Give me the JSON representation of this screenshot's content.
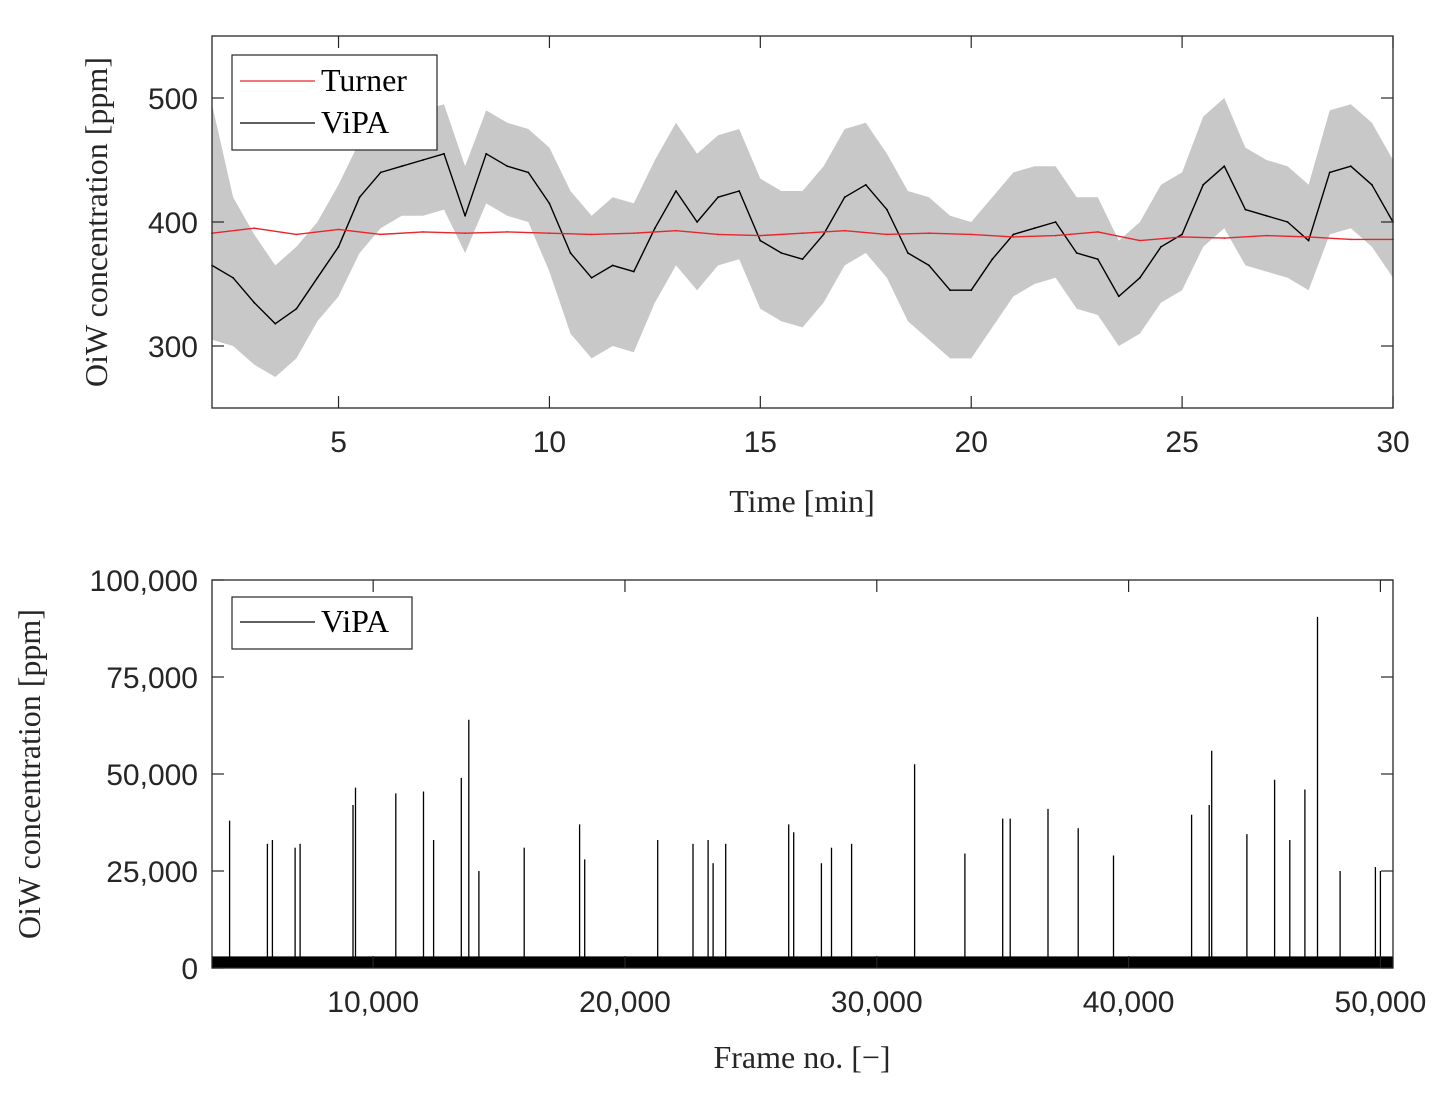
{
  "chart_data": [
    {
      "type": "line",
      "xlabel": "Time [min]",
      "ylabel": "OiW concentration [ppm]",
      "xlim": [
        2,
        30
      ],
      "ylim": [
        250,
        550
      ],
      "x_ticks": [
        5,
        10,
        15,
        20,
        25,
        30
      ],
      "x_tick_labels": [
        "5",
        "10",
        "15",
        "20",
        "25",
        "30"
      ],
      "y_ticks": [
        300,
        400,
        500
      ],
      "y_tick_labels": [
        "300",
        "400",
        "500"
      ],
      "legend": {
        "position": "top-left",
        "entries": [
          "Turner",
          "ViPA"
        ]
      },
      "series": [
        {
          "name": "Turner",
          "color": "#e8262c",
          "x": [
            2,
            3,
            4,
            5,
            6,
            7,
            8,
            9,
            10,
            11,
            12,
            13,
            14,
            15,
            16,
            17,
            18,
            19,
            20,
            21,
            22,
            23,
            24,
            25,
            26,
            27,
            28,
            29,
            30
          ],
          "values": [
            391,
            395,
            390,
            394,
            390,
            392,
            391,
            392,
            391,
            390,
            391,
            393,
            390,
            389,
            391,
            393,
            390,
            391,
            390,
            388,
            389,
            392,
            385,
            388,
            387,
            389,
            388,
            386,
            386
          ]
        },
        {
          "name": "ViPA",
          "color": "#000000",
          "band_color": "#c8c8c8",
          "x": [
            2,
            2.5,
            3,
            3.5,
            4,
            4.5,
            5,
            5.5,
            6,
            6.5,
            7,
            7.5,
            8,
            8.5,
            9,
            9.5,
            10,
            10.5,
            11,
            11.5,
            12,
            12.5,
            13,
            13.5,
            14,
            14.5,
            15,
            15.5,
            16,
            16.5,
            17,
            17.5,
            18,
            18.5,
            19,
            19.5,
            20,
            20.5,
            21,
            21.5,
            22,
            22.5,
            23,
            23.5,
            24,
            24.5,
            25,
            25.5,
            26,
            26.5,
            27,
            27.5,
            28,
            28.5,
            29,
            29.5,
            30
          ],
          "values": [
            365,
            355,
            335,
            318,
            330,
            355,
            380,
            420,
            440,
            445,
            450,
            455,
            405,
            455,
            445,
            440,
            415,
            375,
            355,
            365,
            360,
            395,
            425,
            400,
            420,
            425,
            385,
            375,
            370,
            390,
            420,
            430,
            410,
            375,
            365,
            345,
            345,
            370,
            390,
            395,
            400,
            375,
            370,
            340,
            355,
            380,
            390,
            430,
            445,
            410,
            405,
            400,
            385,
            440,
            445,
            430,
            400
          ],
          "lower": [
            305,
            300,
            285,
            275,
            290,
            320,
            340,
            375,
            395,
            405,
            405,
            410,
            375,
            415,
            405,
            400,
            360,
            310,
            290,
            300,
            295,
            335,
            365,
            345,
            365,
            370,
            330,
            320,
            315,
            335,
            365,
            375,
            355,
            320,
            305,
            290,
            290,
            315,
            340,
            350,
            355,
            330,
            325,
            300,
            310,
            335,
            345,
            380,
            395,
            365,
            360,
            355,
            345,
            390,
            395,
            380,
            355
          ],
          "upper": [
            495,
            420,
            390,
            365,
            380,
            400,
            430,
            465,
            485,
            490,
            490,
            495,
            445,
            490,
            480,
            475,
            460,
            425,
            405,
            420,
            415,
            450,
            480,
            455,
            470,
            475,
            435,
            425,
            425,
            445,
            475,
            480,
            455,
            425,
            420,
            405,
            400,
            420,
            440,
            445,
            445,
            420,
            420,
            385,
            400,
            430,
            440,
            485,
            500,
            460,
            450,
            445,
            430,
            490,
            495,
            480,
            450
          ]
        }
      ]
    },
    {
      "type": "line",
      "xlabel": "Frame no. [−]",
      "ylabel": "OiW concentration [ppm]",
      "xlim": [
        3600,
        50500
      ],
      "ylim": [
        0,
        100000
      ],
      "x_ticks": [
        10000,
        20000,
        30000,
        40000,
        50000
      ],
      "x_tick_labels": [
        "10,000",
        "20,000",
        "30,000",
        "40,000",
        "50,000"
      ],
      "y_ticks": [
        0,
        25000,
        50000,
        75000,
        100000
      ],
      "y_tick_labels": [
        "0",
        "25,000",
        "50,000",
        "75,000",
        "100,000"
      ],
      "legend": {
        "position": "top-left",
        "entries": [
          "ViPA"
        ]
      },
      "series": [
        {
          "name": "ViPA",
          "color": "#000000",
          "baseline": 3000,
          "x": [
            4300,
            5800,
            6000,
            6900,
            7100,
            9200,
            9300,
            10900,
            12000,
            12400,
            13500,
            13800,
            14200,
            16000,
            18200,
            18400,
            21300,
            22700,
            23300,
            23500,
            24000,
            26500,
            26700,
            27800,
            28200,
            29000,
            31500,
            33500,
            35000,
            35300,
            36800,
            38000,
            39400,
            42500,
            43200,
            43300,
            44700,
            45800,
            46400,
            47000,
            47500,
            48400,
            49800,
            50000
          ],
          "values": [
            38000,
            32000,
            33000,
            31000,
            32000,
            42000,
            46500,
            45000,
            45500,
            33000,
            49000,
            64000,
            25000,
            31000,
            37000,
            28000,
            33000,
            32000,
            33000,
            27000,
            32000,
            37000,
            35000,
            27000,
            31000,
            32000,
            52500,
            29500,
            38500,
            38500,
            41000,
            36000,
            29000,
            39500,
            42000,
            56000,
            34500,
            48500,
            33000,
            46000,
            90500,
            25000,
            26000,
            25000
          ]
        }
      ]
    }
  ]
}
